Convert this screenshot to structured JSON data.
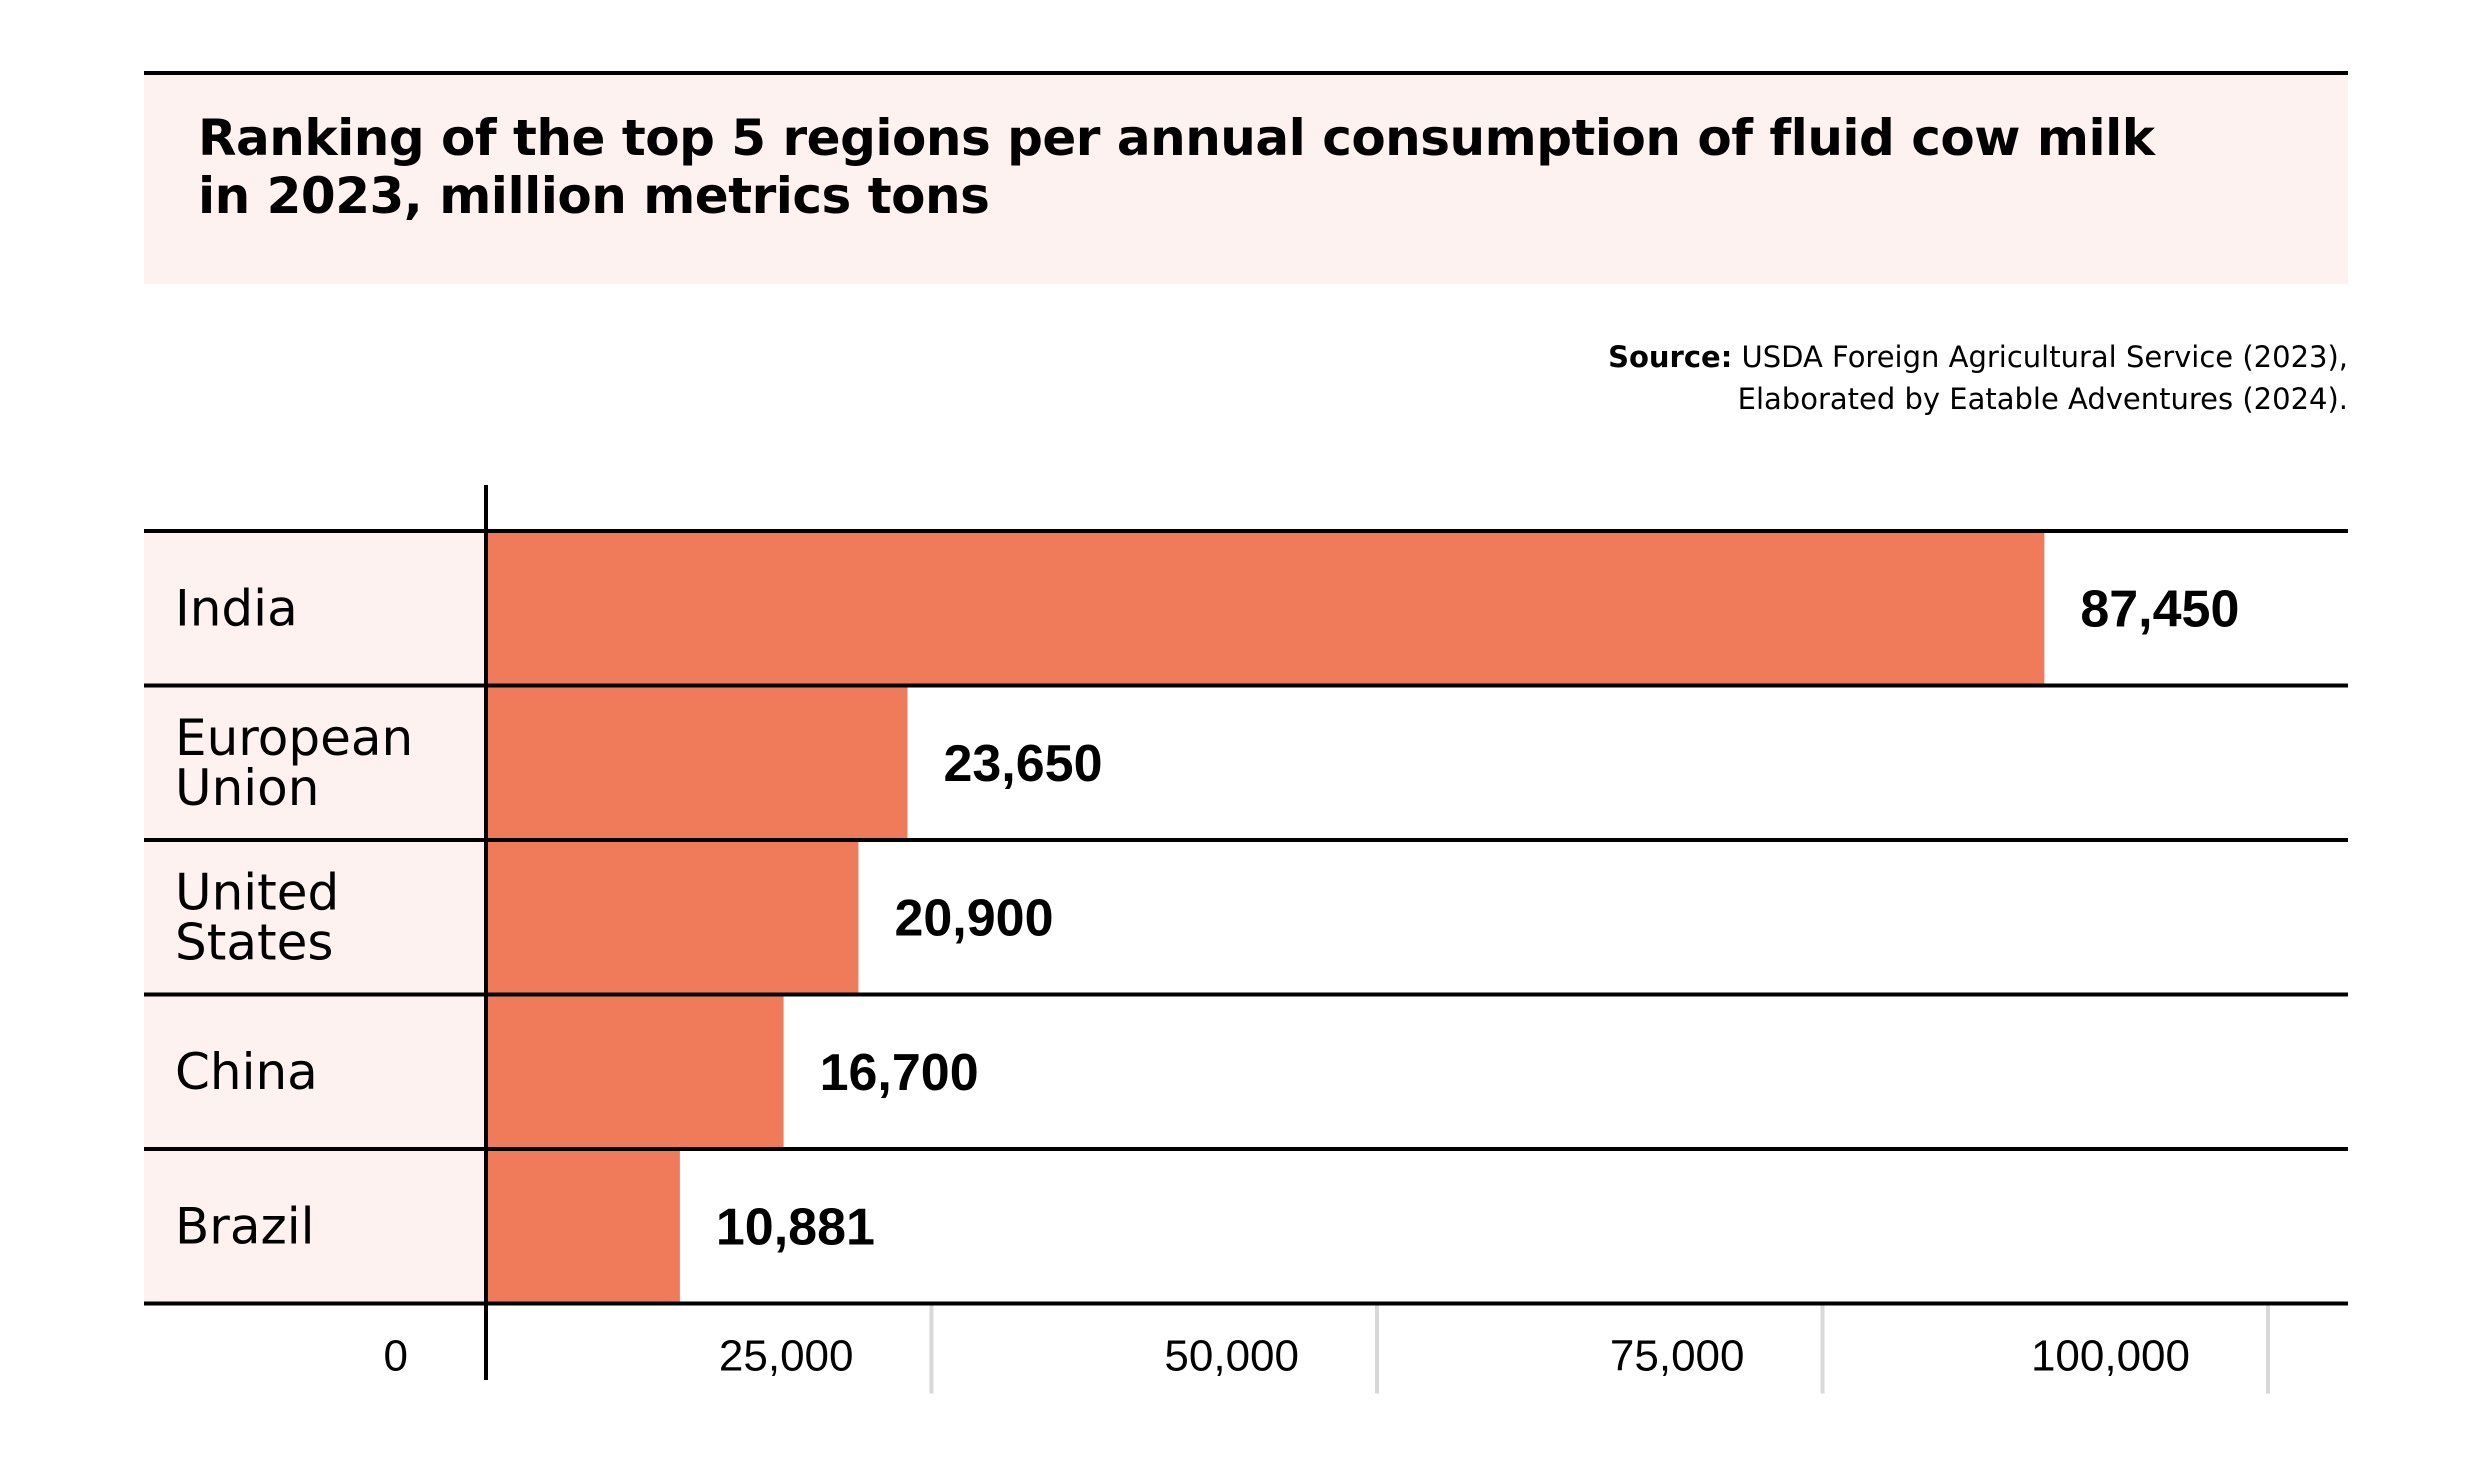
{
  "chart_data": {
    "type": "bar",
    "orientation": "horizontal",
    "title": "Ranking of the top 5 regions per annual consumption of fluid cow milk in 2023, million metrics tons",
    "source": {
      "label": "Source:",
      "line1": "USDA Foreign Agricultural Service (2023),",
      "line2": "Elaborated by Eatable Adventures (2024)."
    },
    "categories": [
      [
        "India"
      ],
      [
        "European",
        "Union"
      ],
      [
        "United",
        "States"
      ],
      [
        "China"
      ],
      [
        "Brazil"
      ]
    ],
    "values": [
      87450,
      23650,
      20900,
      16700,
      10881
    ],
    "value_labels": [
      "87,450",
      "23,650",
      "20,900",
      "16,700",
      "10,881"
    ],
    "xlim": [
      0,
      100000
    ],
    "xticks": [
      0,
      25000,
      50000,
      75000,
      100000
    ],
    "xtick_labels": [
      "0",
      "25,000",
      "50,000",
      "75,000",
      "100,000"
    ],
    "colors": {
      "bar": "#ef7b5b",
      "label_band": "#fdf2f0",
      "grid": "#d9d9d9",
      "rule": "#000000"
    },
    "grid": true,
    "legend": "none"
  }
}
